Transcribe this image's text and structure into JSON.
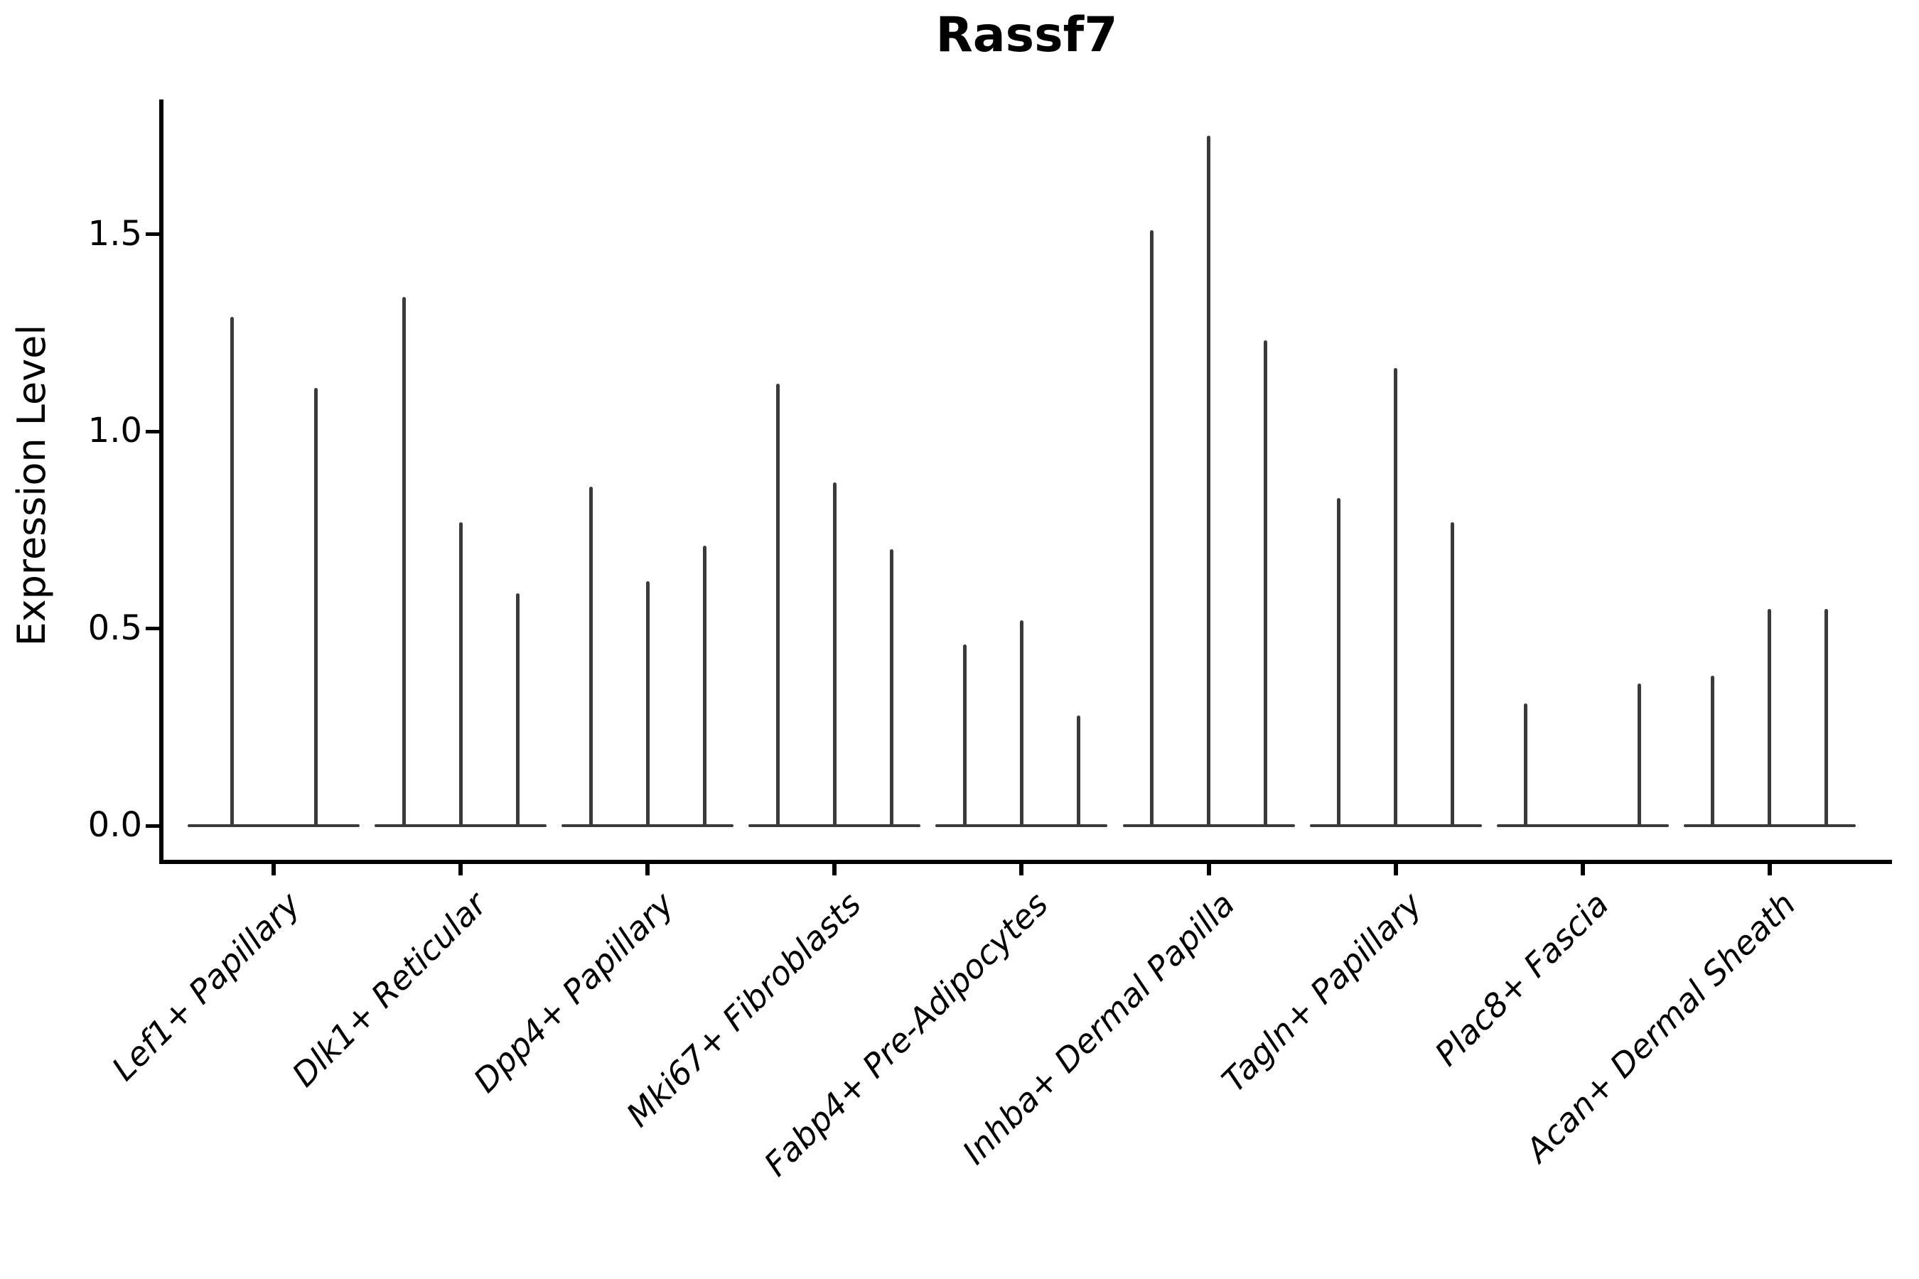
{
  "title": "Rassf7",
  "ylabel": "Expression Level",
  "colors": {
    "violin": "#3a3a3a",
    "axis": "#000000",
    "text": "#000000",
    "background": "#ffffff"
  },
  "chart_data": {
    "type": "violin",
    "title": "Rassf7",
    "xlabel": "",
    "ylabel": "Expression Level",
    "ylim": [
      0,
      1.85
    ],
    "grid": false,
    "legend": null,
    "ytick_values": [
      0,
      0.5,
      1.0,
      1.5
    ],
    "ytick_labels": [
      "0.0",
      "0.5",
      "1.0",
      "1.5"
    ],
    "style_note": "needle-thin violins: each violin collapses to a flat baseline at 0 with a vertical spike up to its maximum expression value",
    "categories": [
      {
        "label": "Lef1+ Papillary",
        "spikes": [
          1.29,
          1.11
        ],
        "offsets": [
          -59,
          59
        ]
      },
      {
        "label": "Dlk1+ Reticular",
        "spikes": [
          1.34,
          0.77,
          0.59
        ],
        "offsets": [
          -80,
          0,
          80
        ]
      },
      {
        "label": "Dpp4+ Papillary",
        "spikes": [
          0.86,
          0.62,
          0.71
        ],
        "offsets": [
          -80,
          0,
          80
        ]
      },
      {
        "label": "Mki67+ Fibroblasts",
        "spikes": [
          1.12,
          0.87,
          0.7
        ],
        "offsets": [
          -80,
          0,
          80
        ]
      },
      {
        "label": "Fabp4+ Pre-Adipocytes",
        "spikes": [
          0.46,
          0.52,
          0.28
        ],
        "offsets": [
          -80,
          0,
          80
        ]
      },
      {
        "label": "Inhba+ Dermal Papilla",
        "spikes": [
          1.51,
          1.75,
          1.23
        ],
        "offsets": [
          -80,
          0,
          80
        ]
      },
      {
        "label": "Tagln+ Papillary",
        "spikes": [
          0.83,
          1.16,
          0.77
        ],
        "offsets": [
          -80,
          0,
          80
        ]
      },
      {
        "label": "Plac8+ Fascia",
        "spikes": [
          0.31,
          0.36
        ],
        "offsets": [
          -80,
          80
        ]
      },
      {
        "label": "Acan+ Dermal Sheath",
        "spikes": [
          0.38,
          0.55,
          0.55
        ],
        "offsets": [
          -80,
          0,
          80
        ]
      }
    ]
  }
}
